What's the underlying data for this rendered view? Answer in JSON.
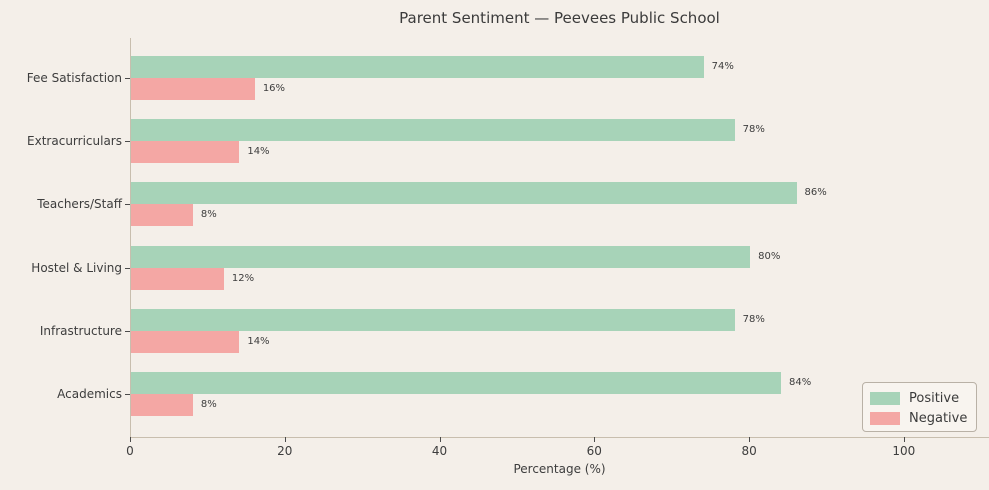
{
  "title": "Parent Sentiment — Peevees Public School",
  "chart_data": {
    "type": "bar",
    "orientation": "horizontal",
    "title": "Parent Sentiment — Peevees Public School",
    "categories": [
      "Fee Satisfaction",
      "Extracurriculars",
      "Teachers/Staff",
      "Hostel & Living",
      "Infrastructure",
      "Academics"
    ],
    "series": [
      {
        "name": "Positive",
        "color": "#a7d3b8",
        "values": [
          74,
          78,
          86,
          80,
          78,
          84
        ]
      },
      {
        "name": "Negative",
        "color": "#f4a7a4",
        "values": [
          16,
          14,
          8,
          12,
          14,
          8
        ]
      }
    ],
    "value_labels": [
      [
        "74%",
        "78%",
        "86%",
        "80%",
        "78%",
        "84%"
      ],
      [
        "16%",
        "14%",
        "8%",
        "12%",
        "14%",
        "8%"
      ]
    ],
    "xlabel": "Percentage (%)",
    "ylabel": "",
    "x_ticks": [
      0,
      20,
      40,
      60,
      80,
      100
    ],
    "x_tick_labels": [
      "0",
      "20",
      "40",
      "60",
      "80",
      "100"
    ],
    "xlim": [
      0,
      111
    ],
    "grid": false,
    "legend_position": "lower right"
  },
  "legend": {
    "items": [
      {
        "label": "Positive"
      },
      {
        "label": "Negative"
      }
    ]
  },
  "colors": {
    "background": "#f4efe9",
    "text": "#3d3d3d",
    "text_dark": "#3b3b3b",
    "spine": "#c8beae",
    "tick": "#4b4b4b",
    "positive": "#a7d3b8",
    "negative": "#f4a7a4",
    "legend_bg": "#f8f4ef",
    "legend_border": "#b9b1a6"
  }
}
